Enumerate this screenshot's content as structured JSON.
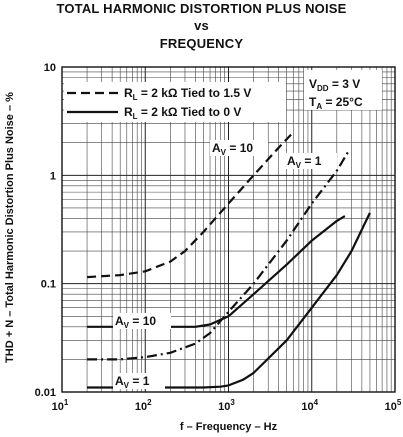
{
  "chart_data": {
    "type": "line",
    "title_lines": [
      "TOTAL HARMONIC DISTORTION PLUS NOISE",
      "vs",
      "FREQUENCY"
    ],
    "xlabel": "f – Frequency – Hz",
    "ylabel": "THD + N – Total Harmonic Distortion Plus Noise – %",
    "x_scale": "log",
    "y_scale": "log",
    "xlim": [
      10,
      100000
    ],
    "ylim": [
      0.01,
      10
    ],
    "grid": true,
    "x_ticks": [
      {
        "value": 10,
        "base": "10",
        "exp": "1"
      },
      {
        "value": 100,
        "base": "10",
        "exp": "2"
      },
      {
        "value": 1000,
        "base": "10",
        "exp": "3"
      },
      {
        "value": 10000,
        "base": "10",
        "exp": "4"
      },
      {
        "value": 100000,
        "base": "10",
        "exp": "5"
      }
    ],
    "y_ticks": [
      {
        "value": 0.01,
        "label": "0.01"
      },
      {
        "value": 0.1,
        "label": "0.1"
      },
      {
        "value": 1,
        "label": "1"
      },
      {
        "value": 10,
        "label": "10"
      }
    ],
    "legend": {
      "placement": "top-left",
      "entries": [
        {
          "style": "dashed",
          "text_main": "R",
          "text_sub": "L",
          "text_rest": " = 2 kΩ Tied to 1.5 V"
        },
        {
          "style": "solid",
          "text_main": "R",
          "text_sub": "L",
          "text_rest": " = 2 kΩ Tied to 0 V"
        }
      ]
    },
    "conditions": [
      {
        "main": "V",
        "sub": "DD",
        "rest": " = 3 V"
      },
      {
        "main": "T",
        "sub": "A",
        "rest": " = 25°C"
      }
    ],
    "series": [
      {
        "style": "dashed",
        "points": [
          [
            20,
            0.115
          ],
          [
            50,
            0.12
          ],
          [
            100,
            0.13
          ],
          [
            200,
            0.16
          ],
          [
            300,
            0.2
          ],
          [
            500,
            0.3
          ],
          [
            1000,
            0.55
          ],
          [
            2000,
            1.0
          ],
          [
            4000,
            1.8
          ],
          [
            6000,
            2.5
          ]
        ]
      },
      {
        "style": "dashdot",
        "points": [
          [
            20,
            0.02
          ],
          [
            50,
            0.02
          ],
          [
            100,
            0.021
          ],
          [
            200,
            0.023
          ],
          [
            400,
            0.028
          ],
          [
            600,
            0.035
          ],
          [
            1000,
            0.055
          ],
          [
            2000,
            0.1
          ],
          [
            5000,
            0.25
          ],
          [
            10000,
            0.55
          ],
          [
            20000,
            1.1
          ],
          [
            28000,
            1.7
          ]
        ]
      },
      {
        "style": "solid",
        "points": [
          [
            20,
            0.04
          ],
          [
            100,
            0.04
          ],
          [
            200,
            0.04
          ],
          [
            400,
            0.04
          ],
          [
            600,
            0.042
          ],
          [
            1000,
            0.05
          ],
          [
            2000,
            0.08
          ],
          [
            5000,
            0.15
          ],
          [
            10000,
            0.25
          ],
          [
            20000,
            0.38
          ],
          [
            25000,
            0.42
          ]
        ]
      },
      {
        "style": "solid",
        "points": [
          [
            20,
            0.011
          ],
          [
            100,
            0.011
          ],
          [
            500,
            0.011
          ],
          [
            800,
            0.0112
          ],
          [
            1000,
            0.0115
          ],
          [
            1500,
            0.013
          ],
          [
            2000,
            0.015
          ],
          [
            5000,
            0.03
          ],
          [
            10000,
            0.06
          ],
          [
            20000,
            0.12
          ],
          [
            30000,
            0.2
          ],
          [
            50000,
            0.45
          ]
        ]
      }
    ],
    "annotations": [
      {
        "main": "A",
        "sub": "V",
        "rest": " = 10",
        "anchor": "upper"
      },
      {
        "main": "A",
        "sub": "V",
        "rest": " = 1",
        "anchor": "upper"
      },
      {
        "main": "A",
        "sub": "V",
        "rest": " = 10",
        "anchor": "lower"
      },
      {
        "main": "A",
        "sub": "V",
        "rest": " = 1",
        "anchor": "lower"
      }
    ]
  }
}
